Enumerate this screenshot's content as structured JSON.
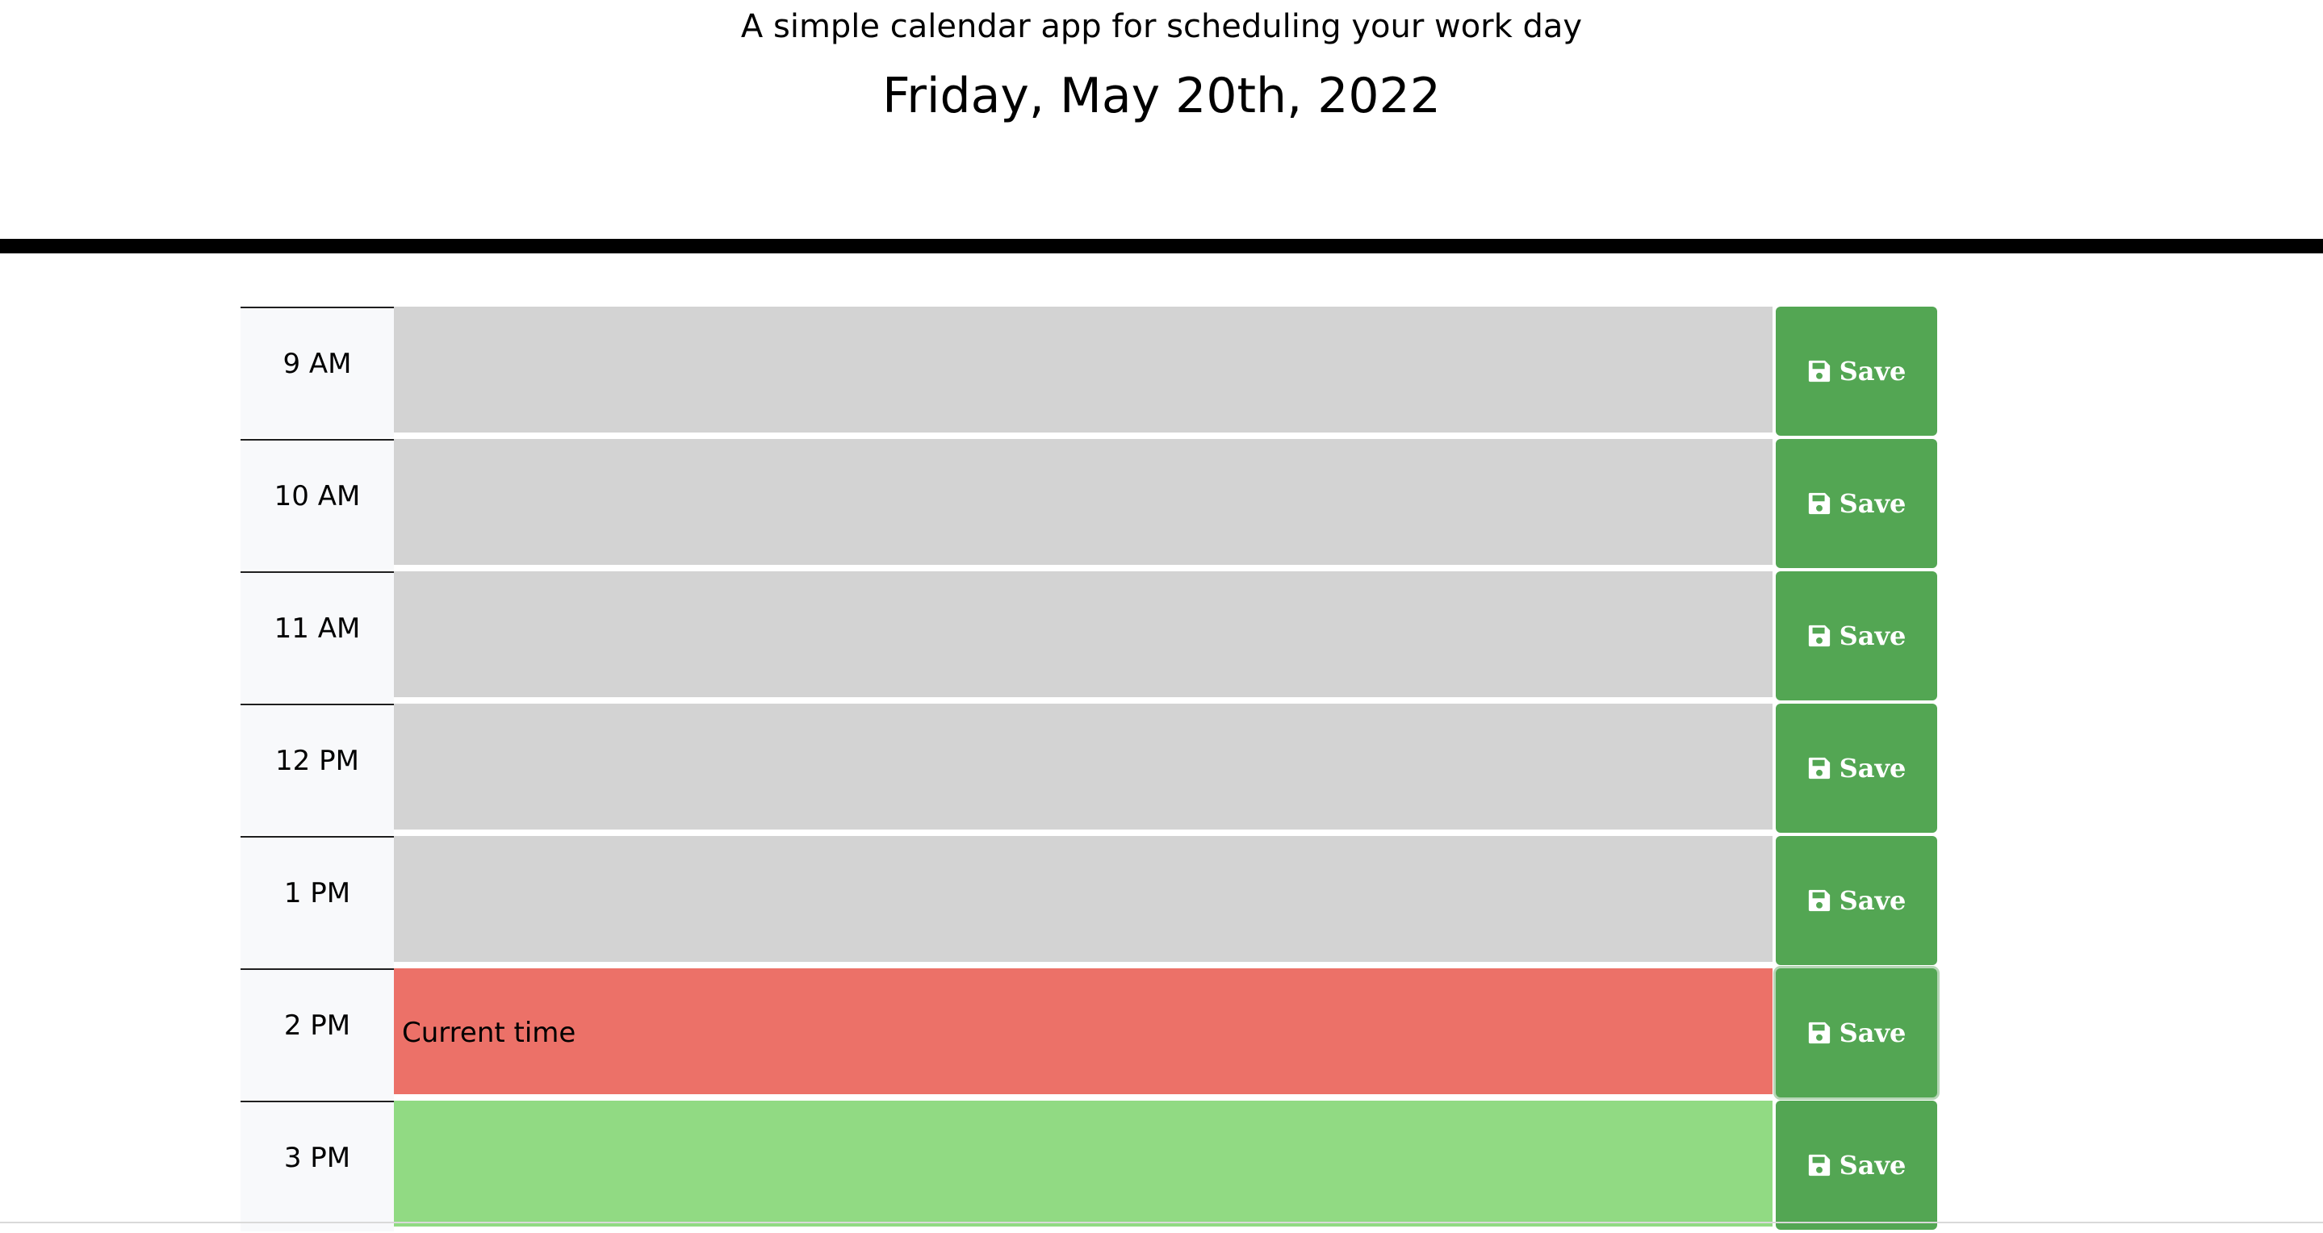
{
  "header": {
    "subtitle": "A simple calendar app for scheduling your work day",
    "current_day": "Friday, May 20th, 2022"
  },
  "colors": {
    "past": "#d3d3d3",
    "present": "#ec7168",
    "future": "#91da83",
    "save_button": "#53a653"
  },
  "timeblocks": [
    {
      "hour": "9 AM",
      "state": "past",
      "text": "",
      "save_label": "Save",
      "save_icon": "floppy-disk-icon"
    },
    {
      "hour": "10 AM",
      "state": "past",
      "text": "",
      "save_label": "Save",
      "save_icon": "floppy-disk-icon"
    },
    {
      "hour": "11 AM",
      "state": "past",
      "text": "",
      "save_label": "Save",
      "save_icon": "floppy-disk-icon"
    },
    {
      "hour": "12 PM",
      "state": "past",
      "text": "",
      "save_label": "Save",
      "save_icon": "floppy-disk-icon"
    },
    {
      "hour": "1 PM",
      "state": "past",
      "text": "",
      "save_label": "Save",
      "save_icon": "floppy-disk-icon"
    },
    {
      "hour": "2 PM",
      "state": "present",
      "text": "Current time",
      "save_label": "Save",
      "save_icon": "floppy-disk-icon"
    },
    {
      "hour": "3 PM",
      "state": "future",
      "text": "",
      "save_label": "Save",
      "save_icon": "floppy-disk-icon"
    }
  ]
}
